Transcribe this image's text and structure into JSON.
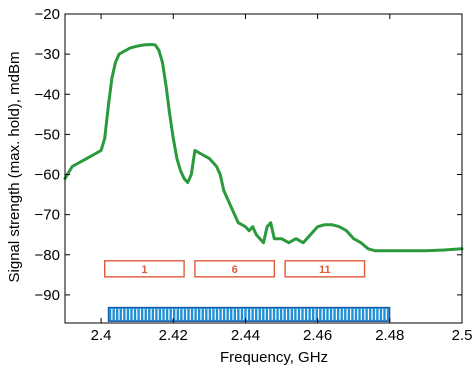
{
  "chart_data": {
    "type": "line",
    "title": "",
    "xlabel": "Frequency, GHz",
    "ylabel": "Signal strength (max. hold), mdBm",
    "xlim": [
      2.39,
      2.5
    ],
    "ylim": [
      -97,
      -20
    ],
    "x_ticks": [
      2.4,
      2.42,
      2.44,
      2.46,
      2.48,
      2.5
    ],
    "x_tick_labels": [
      "2.4",
      "2.42",
      "2.44",
      "2.46",
      "2.48",
      "2.5"
    ],
    "y_ticks": [
      -90,
      -80,
      -70,
      -60,
      -50,
      -40,
      -30,
      -20
    ],
    "y_tick_labels": [
      "−90",
      "−80",
      "−70",
      "−60",
      "−50",
      "−40",
      "−30",
      "−20"
    ],
    "grid": false,
    "series": [
      {
        "color": "#2a9a3c",
        "x": [
          2.39,
          2.392,
          2.394,
          2.396,
          2.398,
          2.4,
          2.401,
          2.402,
          2.403,
          2.404,
          2.405,
          2.406,
          2.407,
          2.408,
          2.41,
          2.412,
          2.414,
          2.415,
          2.416,
          2.417,
          2.418,
          2.419,
          2.42,
          2.421,
          2.422,
          2.423,
          2.424,
          2.425,
          2.426,
          2.428,
          2.43,
          2.432,
          2.433,
          2.434,
          2.435,
          2.436,
          2.437,
          2.438,
          2.44,
          2.441,
          2.442,
          2.443,
          2.444,
          2.445,
          2.446,
          2.447,
          2.448,
          2.45,
          2.452,
          2.454,
          2.456,
          2.458,
          2.46,
          2.462,
          2.464,
          2.466,
          2.468,
          2.47,
          2.472,
          2.474,
          2.476,
          2.478,
          2.48,
          2.485,
          2.49,
          2.495,
          2.5
        ],
        "y": [
          -61,
          -58,
          -57,
          -56,
          -55,
          -54,
          -51,
          -43,
          -36,
          -32,
          -30,
          -29.5,
          -29,
          -28.5,
          -28,
          -27.7,
          -27.6,
          -27.7,
          -29,
          -32,
          -38,
          -45,
          -51,
          -56,
          -59,
          -61,
          -62,
          -60,
          -54,
          -55,
          -56,
          -58,
          -60,
          -64,
          -66,
          -68,
          -70,
          -72,
          -73,
          -74,
          -73,
          -75,
          -76,
          -77,
          -73,
          -72,
          -76,
          -76,
          -77,
          -76,
          -77,
          -75,
          -73,
          -72.5,
          -72.5,
          -73,
          -74,
          -76,
          -77,
          -78.5,
          -79,
          -79,
          -79,
          -79,
          -79,
          -78.8,
          -78.5
        ]
      }
    ],
    "channels": [
      {
        "label": "1",
        "x_start": 2.401,
        "x_end": 2.423
      },
      {
        "label": "6",
        "x_start": 2.426,
        "x_end": 2.448
      },
      {
        "label": "11",
        "x_start": 2.451,
        "x_end": 2.473
      }
    ],
    "bluetooth_band": {
      "x_start": 2.402,
      "x_end": 2.48,
      "channels": 79
    },
    "colors": {
      "signal": "#2a9a3c",
      "channel_outline": "#e05a3a",
      "bt_fill": "#1f8fd6",
      "bt_dark": "#1a4f9a",
      "bt_stripe": "#ffffff"
    }
  }
}
